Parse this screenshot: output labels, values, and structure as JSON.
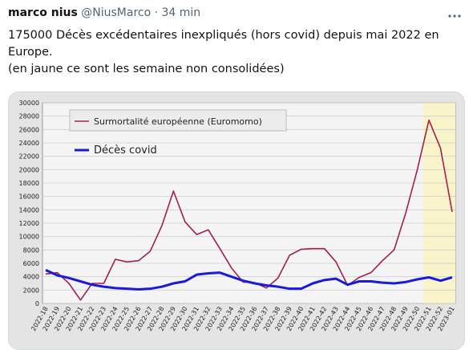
{
  "header": {
    "name": "marco nius",
    "handle": "@NiusMarco",
    "separator": "·",
    "time": "34 min"
  },
  "text": [
    "175000 Décès excédentaires inexpliqués (hors covid) depuis  mai 2022 en Europe.",
    "(en jaune ce sont les semaine non consolidées)"
  ],
  "chart_data": {
    "type": "line",
    "categories": [
      "2022-18",
      "2022-19",
      "2022-20",
      "2022-21",
      "2022-22",
      "2022-23",
      "2022-24",
      "2022-25",
      "2022-26",
      "2022-27",
      "2022-28",
      "2022-29",
      "2022-30",
      "2022-31",
      "2022-32",
      "2022-33",
      "2022-34",
      "2022-35",
      "2022-36",
      "2022-37",
      "2022-38",
      "2022-39",
      "2022-40",
      "2022-41",
      "2022-42",
      "2022-43",
      "2022-44",
      "2022-45",
      "2022-46",
      "2022-47",
      "2022-48",
      "2022-49",
      "2022-50",
      "2022-51",
      "2022-52",
      "2023-01"
    ],
    "series": [
      {
        "name": "Surmortalité européenne  (Euromomo)",
        "color": "#a3204f",
        "values": [
          4400,
          4600,
          3000,
          500,
          3000,
          3000,
          6600,
          6200,
          6400,
          7800,
          11600,
          16800,
          12200,
          10300,
          11000,
          8200,
          5300,
          3200,
          3100,
          2300,
          3800,
          7200,
          8100,
          8200,
          8200,
          6200,
          2700,
          3900,
          4600,
          6400,
          8000,
          13500,
          20000,
          27400,
          23200,
          13700
        ]
      },
      {
        "name": "Décès covid",
        "color": "#1a1adb",
        "values": [
          5000,
          4200,
          3800,
          3300,
          2800,
          2500,
          2300,
          2200,
          2100,
          2200,
          2500,
          3000,
          3300,
          4300,
          4500,
          4600,
          4000,
          3400,
          3000,
          2700,
          2500,
          2200,
          2200,
          3000,
          3500,
          3700,
          2800,
          3300,
          3300,
          3100,
          3000,
          3200,
          3600,
          3900,
          3400,
          3900
        ]
      }
    ],
    "ylim": [
      0,
      30000
    ],
    "yticks": [
      0,
      2000,
      4000,
      6000,
      8000,
      10000,
      12000,
      14000,
      16000,
      18000,
      20000,
      22000,
      24000,
      26000,
      28000,
      30000
    ],
    "grid": true,
    "highlight_start": "2022-51",
    "highlight_color": "#f8f3c8"
  }
}
